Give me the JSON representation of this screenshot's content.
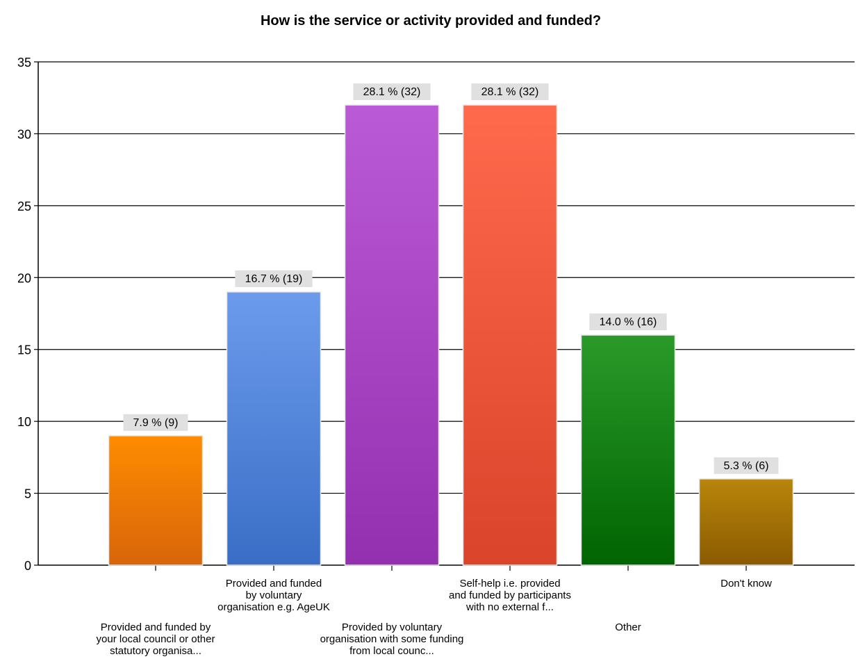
{
  "chart_data": {
    "type": "bar",
    "title": "How is the service or activity provided and funded?",
    "xlabel": "",
    "ylabel": "",
    "ylim": [
      0,
      35
    ],
    "yticks": [
      0,
      5,
      10,
      15,
      20,
      25,
      30,
      35
    ],
    "grid": true,
    "legend": "none",
    "categories": [
      "Provided and funded by your local council or other statutory organisa...",
      "Provided and funded by voluntary organisation e.g. AgeUK",
      "Provided by voluntary organisation with some funding from local counc...",
      "Self-help i.e. provided and funded by participants with no external f...",
      "Other",
      "Don't know"
    ],
    "category_lines": [
      [
        "Provided and funded by",
        "your local council or other",
        "statutory organisa..."
      ],
      [
        "Provided and funded",
        "by voluntary",
        "organisation e.g. AgeUK"
      ],
      [
        "Provided by voluntary",
        "organisation with some funding",
        "from local counc..."
      ],
      [
        "Self-help i.e. provided",
        "and funded by participants",
        "with no external f..."
      ],
      [
        "Other"
      ],
      [
        "Don't know"
      ]
    ],
    "label_row": [
      "low",
      "high",
      "low",
      "high",
      "low",
      "high"
    ],
    "values": [
      9,
      19,
      32,
      32,
      16,
      6
    ],
    "data_labels": [
      "7.9 % (9)",
      "16.7 % (19)",
      "28.1 % (32)",
      "28.1 % (32)",
      "14.0 % (16)",
      "5.3 % (6)"
    ],
    "colors": [
      [
        "#ff8c00",
        "#d8650a"
      ],
      [
        "#6b9bec",
        "#3a6ec6"
      ],
      [
        "#bb5ad6",
        "#9330b0"
      ],
      [
        "#ff6a4d",
        "#d9442a"
      ],
      [
        "#2a9a2a",
        "#006400"
      ],
      [
        "#b8860b",
        "#8b5a00"
      ]
    ]
  }
}
